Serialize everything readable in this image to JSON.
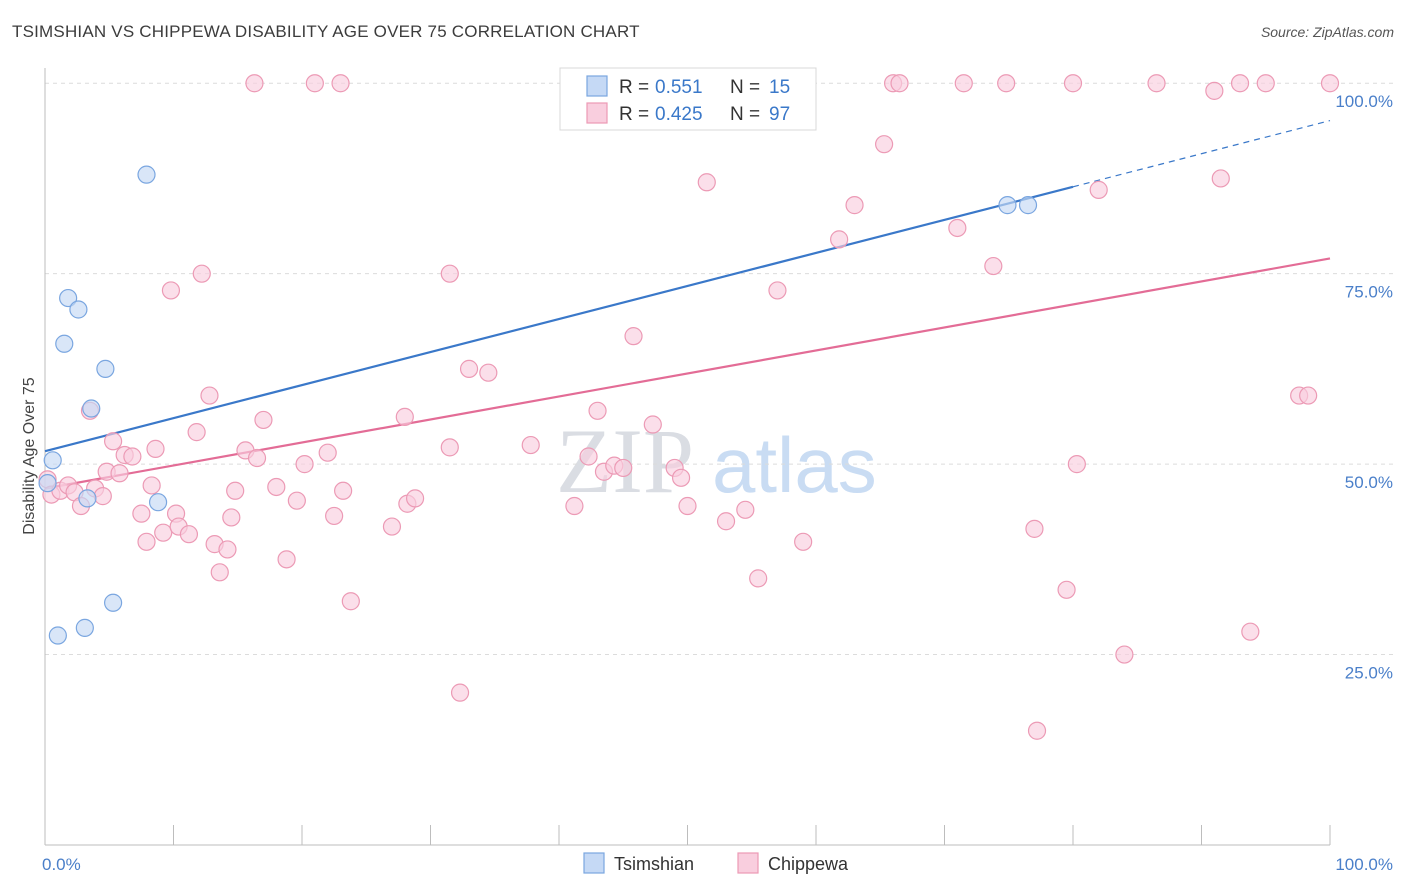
{
  "header": {
    "title": "TSIMSHIAN VS CHIPPEWA DISABILITY AGE OVER 75 CORRELATION CHART",
    "source": "Source: ZipAtlas.com"
  },
  "watermark": {
    "zip": "ZIP",
    "atlas": "atlas"
  },
  "legend": {
    "r_label": "R =",
    "n_label": "N =",
    "rows": [
      {
        "series": "Tsimshian",
        "r": "0.551",
        "n": "15",
        "fill": "#c5d9f5",
        "stroke": "#7aa6e0"
      },
      {
        "series": "Chippewa",
        "r": "0.425",
        "n": "97",
        "fill": "#f9cede",
        "stroke": "#ec9ab5"
      }
    ]
  },
  "bottom_legend": [
    {
      "label": "Tsimshian",
      "fill": "#c5d9f5",
      "stroke": "#7aa6e0"
    },
    {
      "label": "Chippewa",
      "fill": "#f9cede",
      "stroke": "#ec9ab5"
    }
  ],
  "chart_data": {
    "type": "scatter",
    "title": "TSIMSHIAN VS CHIPPEWA DISABILITY AGE OVER 75 CORRELATION CHART",
    "xlabel": "",
    "ylabel": "Disability Age Over 75",
    "xlim": [
      0,
      100
    ],
    "ylim": [
      0,
      102
    ],
    "x_tick_labels": {
      "left": "0.0%",
      "right": "100.0%"
    },
    "y_ticks": [
      {
        "value": 25,
        "label": "25.0%"
      },
      {
        "value": 50,
        "label": "50.0%"
      },
      {
        "value": 75,
        "label": "75.0%"
      },
      {
        "value": 100,
        "label": "100.0%"
      }
    ],
    "grid": true,
    "series": [
      {
        "name": "Tsimshian",
        "color": "#3a78c9",
        "fill": "#c5d9f5",
        "stroke": "#7aa6e0",
        "points": [
          [
            0.2,
            47.5
          ],
          [
            0.6,
            50.5
          ],
          [
            1.0,
            27.5
          ],
          [
            1.5,
            65.8
          ],
          [
            1.8,
            71.8
          ],
          [
            2.6,
            70.3
          ],
          [
            3.1,
            28.5
          ],
          [
            3.3,
            45.5
          ],
          [
            3.6,
            57.3
          ],
          [
            4.7,
            62.5
          ],
          [
            5.3,
            31.8
          ],
          [
            7.9,
            88.0
          ],
          [
            8.8,
            45.0
          ],
          [
            74.9,
            84.0
          ],
          [
            76.5,
            84.0
          ]
        ],
        "trend": {
          "x0": 0,
          "y0": 51.7,
          "x1": 80,
          "y1": 86.4,
          "dash_x1": 100,
          "dash_y1": 95.1
        }
      },
      {
        "name": "Chippewa",
        "color": "#e36c96",
        "fill": "#f9cede",
        "stroke": "#ec9ab5",
        "points": [
          [
            0.2,
            48.0
          ],
          [
            0.5,
            46.0
          ],
          [
            1.2,
            46.5
          ],
          [
            1.8,
            47.2
          ],
          [
            2.3,
            46.3
          ],
          [
            2.8,
            44.5
          ],
          [
            3.5,
            57.0
          ],
          [
            3.9,
            46.8
          ],
          [
            4.5,
            45.8
          ],
          [
            4.8,
            49.0
          ],
          [
            5.3,
            53.0
          ],
          [
            5.8,
            48.8
          ],
          [
            6.2,
            51.2
          ],
          [
            6.8,
            51.0
          ],
          [
            7.5,
            43.5
          ],
          [
            7.9,
            39.8
          ],
          [
            8.3,
            47.2
          ],
          [
            8.6,
            52.0
          ],
          [
            9.2,
            41.0
          ],
          [
            9.8,
            72.8
          ],
          [
            10.2,
            43.5
          ],
          [
            10.4,
            41.8
          ],
          [
            11.2,
            40.8
          ],
          [
            11.8,
            54.2
          ],
          [
            12.2,
            75.0
          ],
          [
            12.8,
            59.0
          ],
          [
            13.2,
            39.5
          ],
          [
            13.6,
            35.8
          ],
          [
            14.2,
            38.8
          ],
          [
            14.5,
            43.0
          ],
          [
            14.8,
            46.5
          ],
          [
            15.6,
            51.8
          ],
          [
            16.5,
            50.8
          ],
          [
            17.0,
            55.8
          ],
          [
            18.0,
            47.0
          ],
          [
            18.8,
            37.5
          ],
          [
            19.6,
            45.2
          ],
          [
            20.2,
            50.0
          ],
          [
            22.0,
            51.5
          ],
          [
            22.5,
            43.2
          ],
          [
            23.2,
            46.5
          ],
          [
            23.8,
            32.0
          ],
          [
            16.3,
            100.0
          ],
          [
            21.0,
            100.0
          ],
          [
            23.0,
            100.0
          ],
          [
            27.0,
            41.8
          ],
          [
            28.0,
            56.2
          ],
          [
            28.2,
            44.8
          ],
          [
            28.8,
            45.5
          ],
          [
            31.5,
            52.2
          ],
          [
            31.5,
            75.0
          ],
          [
            32.3,
            20.0
          ],
          [
            33.0,
            62.5
          ],
          [
            34.5,
            62.0
          ],
          [
            37.8,
            52.5
          ],
          [
            41.2,
            44.5
          ],
          [
            42.3,
            51.0
          ],
          [
            43.0,
            57.0
          ],
          [
            43.5,
            49.0
          ],
          [
            44.3,
            49.8
          ],
          [
            45.0,
            49.5
          ],
          [
            45.8,
            66.8
          ],
          [
            47.3,
            55.2
          ],
          [
            49.0,
            49.5
          ],
          [
            49.5,
            48.2
          ],
          [
            50.0,
            44.5
          ],
          [
            51.5,
            87.0
          ],
          [
            53.0,
            42.5
          ],
          [
            54.5,
            44.0
          ],
          [
            55.5,
            35.0
          ],
          [
            57.0,
            72.8
          ],
          [
            59.0,
            39.8
          ],
          [
            61.8,
            79.5
          ],
          [
            63.0,
            84.0
          ],
          [
            65.3,
            92.0
          ],
          [
            66.0,
            100.0
          ],
          [
            66.5,
            100.0
          ],
          [
            71.0,
            81.0
          ],
          [
            71.5,
            100.0
          ],
          [
            73.8,
            76.0
          ],
          [
            74.8,
            100.0
          ],
          [
            77.0,
            41.5
          ],
          [
            79.5,
            33.5
          ],
          [
            80.0,
            100.0
          ],
          [
            80.3,
            50.0
          ],
          [
            82.0,
            86.0
          ],
          [
            84.0,
            25.0
          ],
          [
            86.5,
            100.0
          ],
          [
            91.0,
            99.0
          ],
          [
            91.5,
            87.5
          ],
          [
            93.0,
            100.0
          ],
          [
            93.8,
            28.0
          ],
          [
            95.0,
            100.0
          ],
          [
            97.6,
            59.0
          ],
          [
            98.3,
            59.0
          ],
          [
            100.0,
            100.0
          ],
          [
            77.2,
            15.0
          ]
        ],
        "trend": {
          "x0": 0,
          "y0": 46.8,
          "x1": 100,
          "y1": 77.0
        }
      }
    ]
  }
}
